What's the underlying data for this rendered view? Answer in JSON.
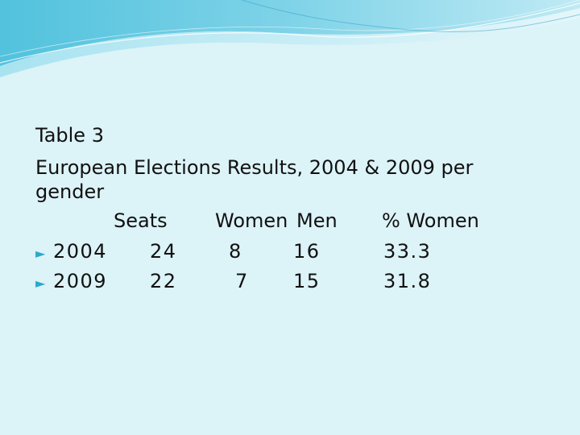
{
  "slide": {
    "title_line1": "Table 3",
    "title_line2": "European Elections Results, 2004 & 2009 per",
    "title_line3": "gender"
  },
  "table": {
    "headers": [
      "Seats",
      "Women",
      "Men",
      "% Women"
    ],
    "rows": [
      {
        "year": "2004",
        "seats": "24",
        "women": "8",
        "men": "16",
        "pct_women": "33.3"
      },
      {
        "year": "2009",
        "seats": "22",
        "women": "7",
        "men": "15",
        "pct_women": "31.8"
      }
    ]
  },
  "icons": {
    "bullet": "bullet-icon"
  },
  "colors": {
    "background": "#dcf3f8",
    "wave_primary": "#3bb6d6",
    "wave_light": "#9fe0ef",
    "bullet": "#2aa9c8"
  }
}
